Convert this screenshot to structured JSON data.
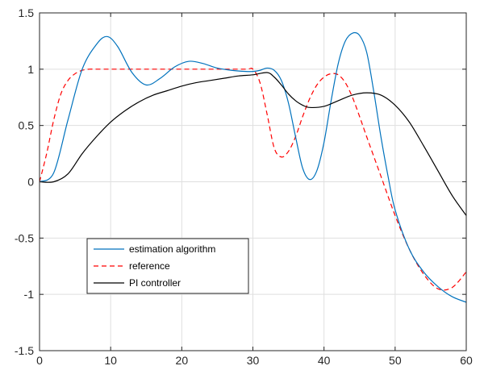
{
  "chart_data": {
    "type": "line",
    "title": "",
    "xlabel": "",
    "ylabel": "",
    "xlim": [
      0,
      60
    ],
    "ylim": [
      -1.5,
      1.5
    ],
    "xticks": [
      0,
      10,
      20,
      30,
      40,
      50,
      60
    ],
    "yticks": [
      -1.5,
      -1,
      -0.5,
      0,
      0.5,
      1,
      1.5
    ],
    "xtick_labels": [
      "0",
      "10",
      "20",
      "30",
      "40",
      "50",
      "60"
    ],
    "ytick_labels": [
      "-1.5",
      "-1",
      "-0.5",
      "0",
      "0.5",
      "1",
      "1.5"
    ],
    "grid": true,
    "legend_position": "bottom-left",
    "series": [
      {
        "name": "estimation algorithm",
        "color": "#0072BD",
        "style": "solid",
        "x": [
          0,
          2,
          4,
          6,
          8,
          9.5,
          11,
          13,
          15,
          17,
          19,
          21,
          23,
          25,
          27,
          29,
          30,
          31,
          32,
          33,
          34,
          35,
          36,
          37,
          38,
          39,
          40,
          41,
          42,
          43,
          44,
          45,
          46,
          47,
          48,
          49,
          50,
          52,
          54,
          56,
          58,
          60
        ],
        "y": [
          0,
          0.08,
          0.55,
          1.0,
          1.22,
          1.29,
          1.2,
          0.97,
          0.86,
          0.92,
          1.02,
          1.07,
          1.05,
          1.01,
          0.99,
          0.98,
          0.98,
          0.99,
          1.01,
          0.99,
          0.9,
          0.7,
          0.4,
          0.12,
          0.02,
          0.1,
          0.35,
          0.72,
          1.05,
          1.25,
          1.32,
          1.3,
          1.15,
          0.8,
          0.4,
          0.05,
          -0.25,
          -0.6,
          -0.8,
          -0.93,
          -1.02,
          -1.07
        ]
      },
      {
        "name": "reference",
        "color": "#FF0000",
        "style": "dashed",
        "x": [
          0,
          1,
          2,
          3,
          4,
          5,
          6,
          7,
          8,
          10,
          15,
          20,
          25,
          29,
          30,
          31,
          32,
          33,
          34,
          35,
          36,
          37,
          38,
          39,
          40,
          41,
          42,
          43,
          44,
          45,
          46,
          48,
          50,
          52,
          54,
          56,
          58,
          60
        ],
        "y": [
          0,
          0.25,
          0.55,
          0.78,
          0.9,
          0.96,
          0.99,
          1.0,
          1.0,
          1.0,
          1.0,
          1.0,
          1.0,
          1.0,
          1.0,
          0.88,
          0.6,
          0.3,
          0.22,
          0.27,
          0.4,
          0.58,
          0.74,
          0.86,
          0.93,
          0.96,
          0.95,
          0.88,
          0.75,
          0.58,
          0.4,
          0.05,
          -0.3,
          -0.6,
          -0.82,
          -0.95,
          -0.94,
          -0.8
        ]
      },
      {
        "name": "PI controller",
        "color": "#000000",
        "style": "solid",
        "x": [
          0,
          2,
          4,
          6,
          8,
          10,
          12,
          14,
          16,
          18,
          20,
          22,
          24,
          26,
          28,
          30,
          32,
          33,
          34,
          35,
          36,
          37,
          38,
          40,
          42,
          44,
          46,
          48,
          50,
          52,
          54,
          56,
          58,
          60
        ],
        "y": [
          0,
          0,
          0.07,
          0.25,
          0.4,
          0.53,
          0.63,
          0.71,
          0.77,
          0.81,
          0.85,
          0.88,
          0.9,
          0.92,
          0.94,
          0.95,
          0.97,
          0.93,
          0.86,
          0.78,
          0.72,
          0.68,
          0.66,
          0.67,
          0.72,
          0.77,
          0.79,
          0.77,
          0.68,
          0.53,
          0.32,
          0.1,
          -0.12,
          -0.3
        ]
      }
    ]
  }
}
